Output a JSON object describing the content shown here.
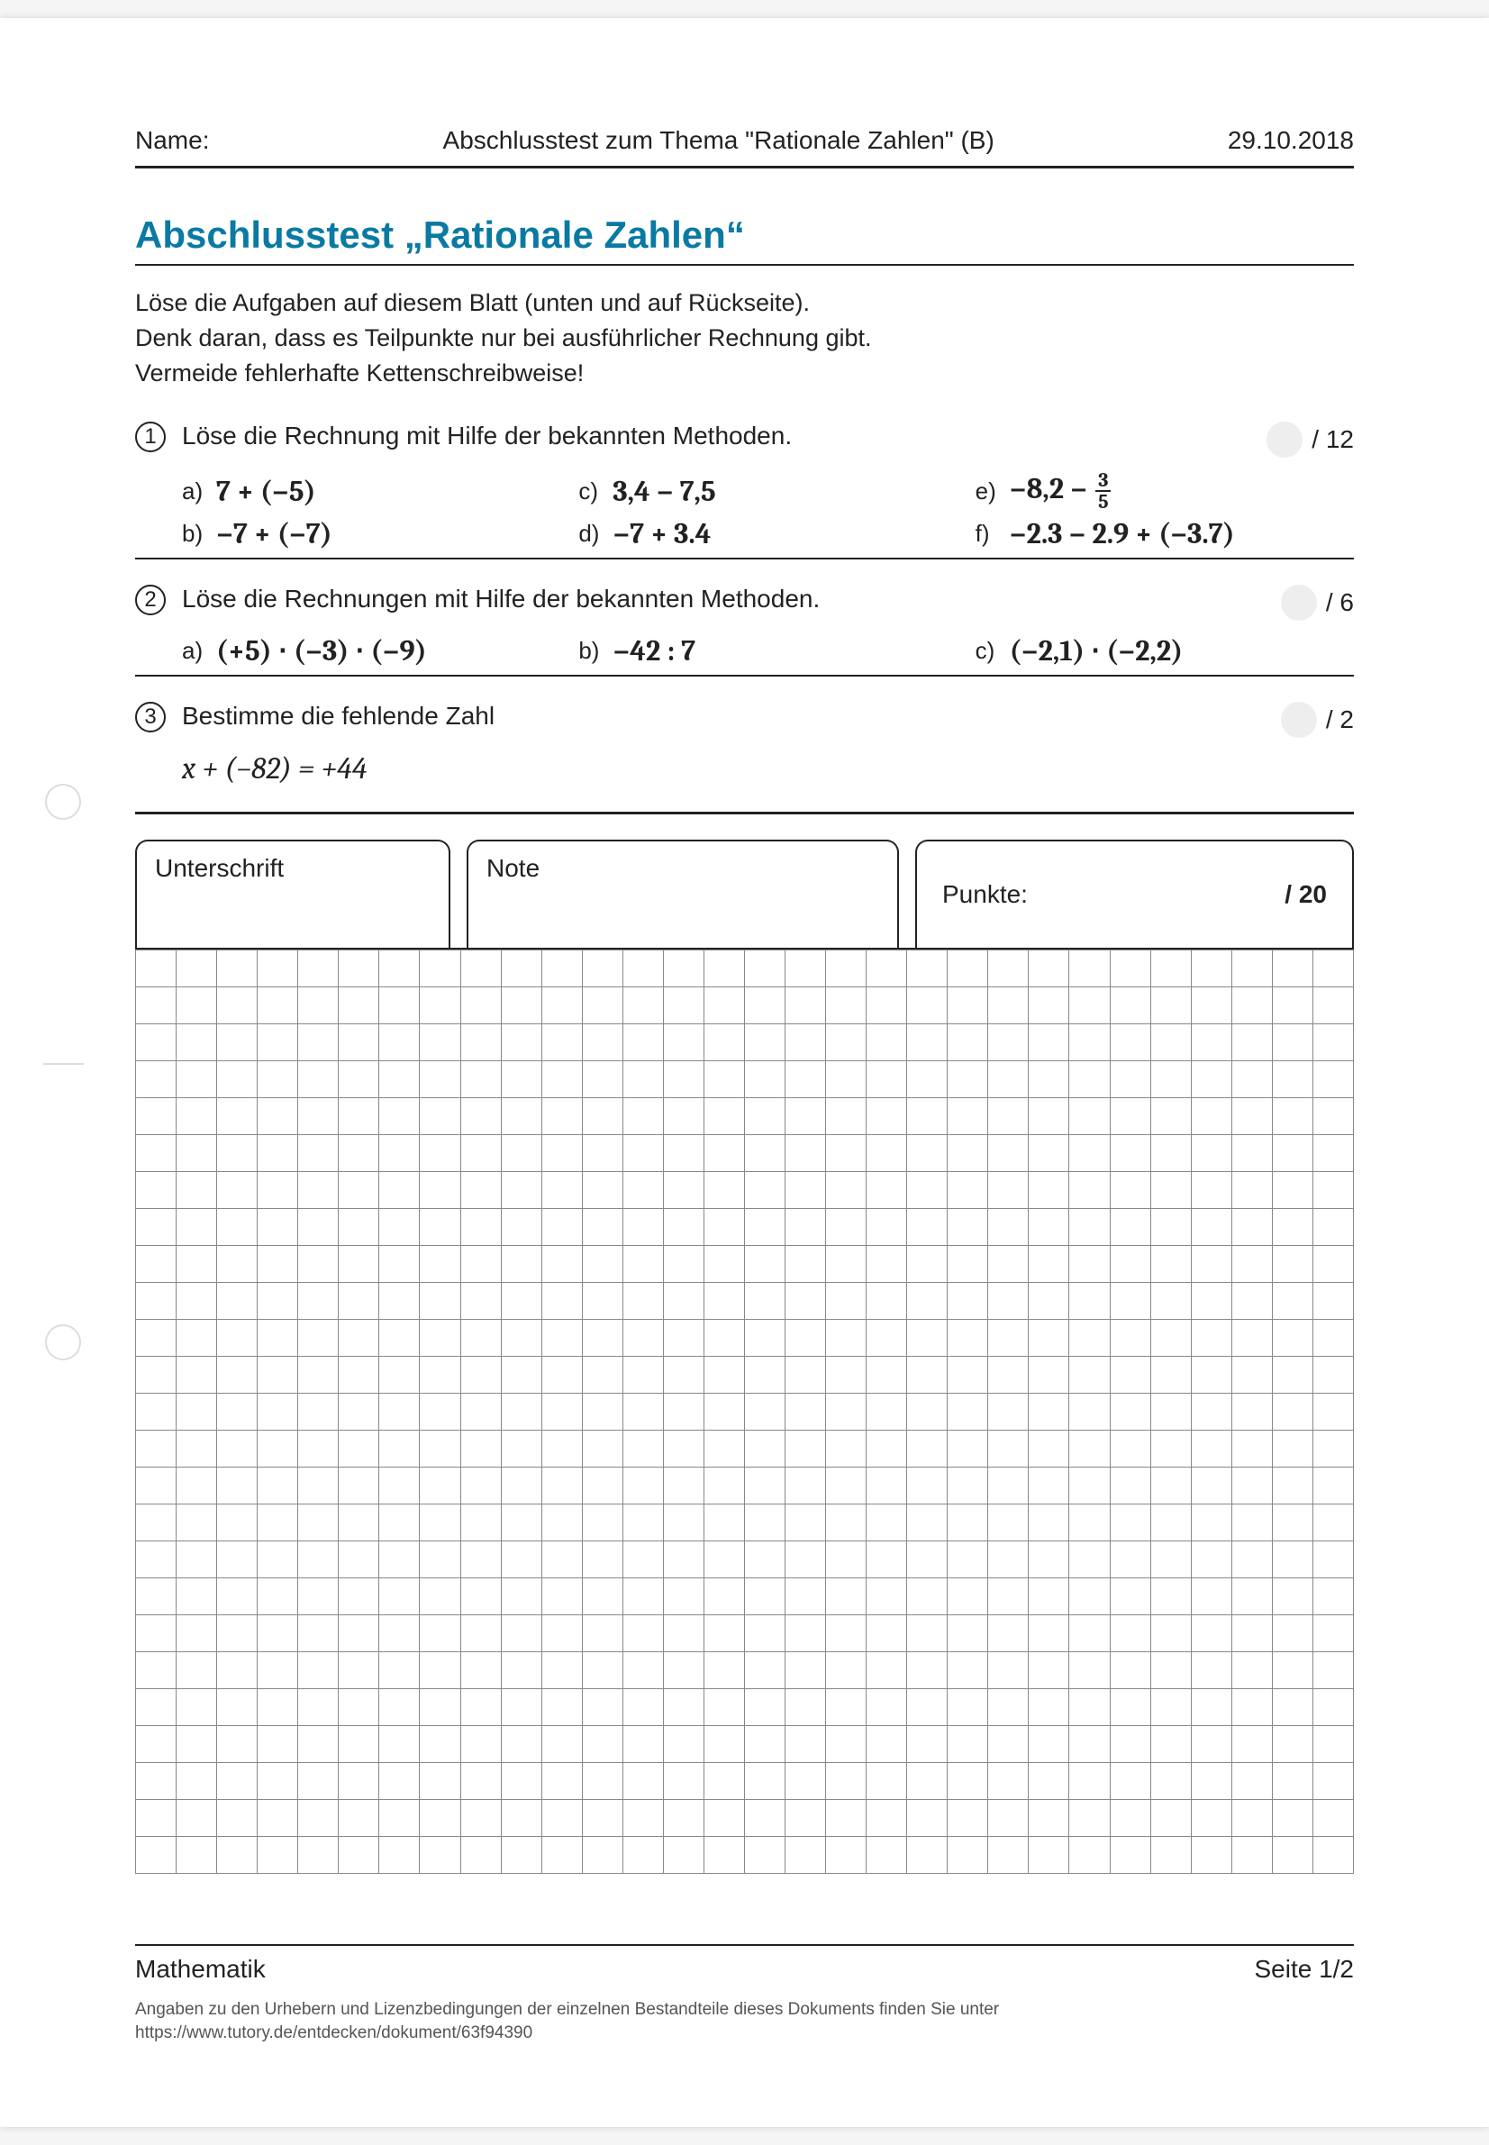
{
  "header": {
    "name_label": "Name:",
    "doc_title": "Abschlusstest zum Thema \"Rationale Zahlen\" (B)",
    "date": "29.10.2018"
  },
  "title": "Abschlusstest „Rationale Zahlen“",
  "instructions": [
    "Löse die Aufgaben auf diesem Blatt (unten und auf Rückseite).",
    "Denk daran, dass es Teilpunkte nur bei ausführlicher Rechnung gibt.",
    "Vermeide fehlerhafte Kettenschreibweise!"
  ],
  "tasks": [
    {
      "num": "1",
      "text": "Löse die Rechnung mit Hilfe der bekannten Methoden.",
      "points": "/ 12",
      "items": [
        {
          "label": "a)",
          "expr": "7 + (−5)"
        },
        {
          "label": "c)",
          "expr": "3,4 − 7,5"
        },
        {
          "label": "e)",
          "expr_html": "−8,2 − <frac>3|5</frac>"
        },
        {
          "label": "b)",
          "expr": "−7 + (−7)"
        },
        {
          "label": "d)",
          "expr": "−7 + 3.4"
        },
        {
          "label": "f)",
          "expr": "−2.3 − 2.9 + (−3.7)"
        }
      ]
    },
    {
      "num": "2",
      "text": "Löse die Rechnungen mit Hilfe der bekannten Methoden.",
      "points": "/ 6",
      "items": [
        {
          "label": "a)",
          "expr": "(+5) ⋅ (−3) ⋅ (−9)"
        },
        {
          "label": "b)",
          "expr": "−42 : 7"
        },
        {
          "label": "c)",
          "expr": "(−2,1) ⋅ (−2,2)"
        }
      ]
    },
    {
      "num": "3",
      "text": "Bestimme die fehlende Zahl",
      "points": "/ 2",
      "equation": "x + (−82) = +44"
    }
  ],
  "sign": {
    "signature_label": "Unterschrift",
    "grade_label": "Note",
    "points_label": "Punkte:",
    "points_max": "/ 20"
  },
  "grid": {
    "rows": 25,
    "cols": 30
  },
  "footer": {
    "subject": "Mathematik",
    "page": "Seite 1/2",
    "note1": "Angaben zu den Urhebern und Lizenzbedingungen der einzelnen Bestandteile dieses Dokuments finden Sie unter",
    "note2": "https://www.tutory.de/entdecken/dokument/63f94390"
  },
  "colors": {
    "title": "#0a7aa3",
    "text": "#222222",
    "grid_border": "#888888"
  }
}
